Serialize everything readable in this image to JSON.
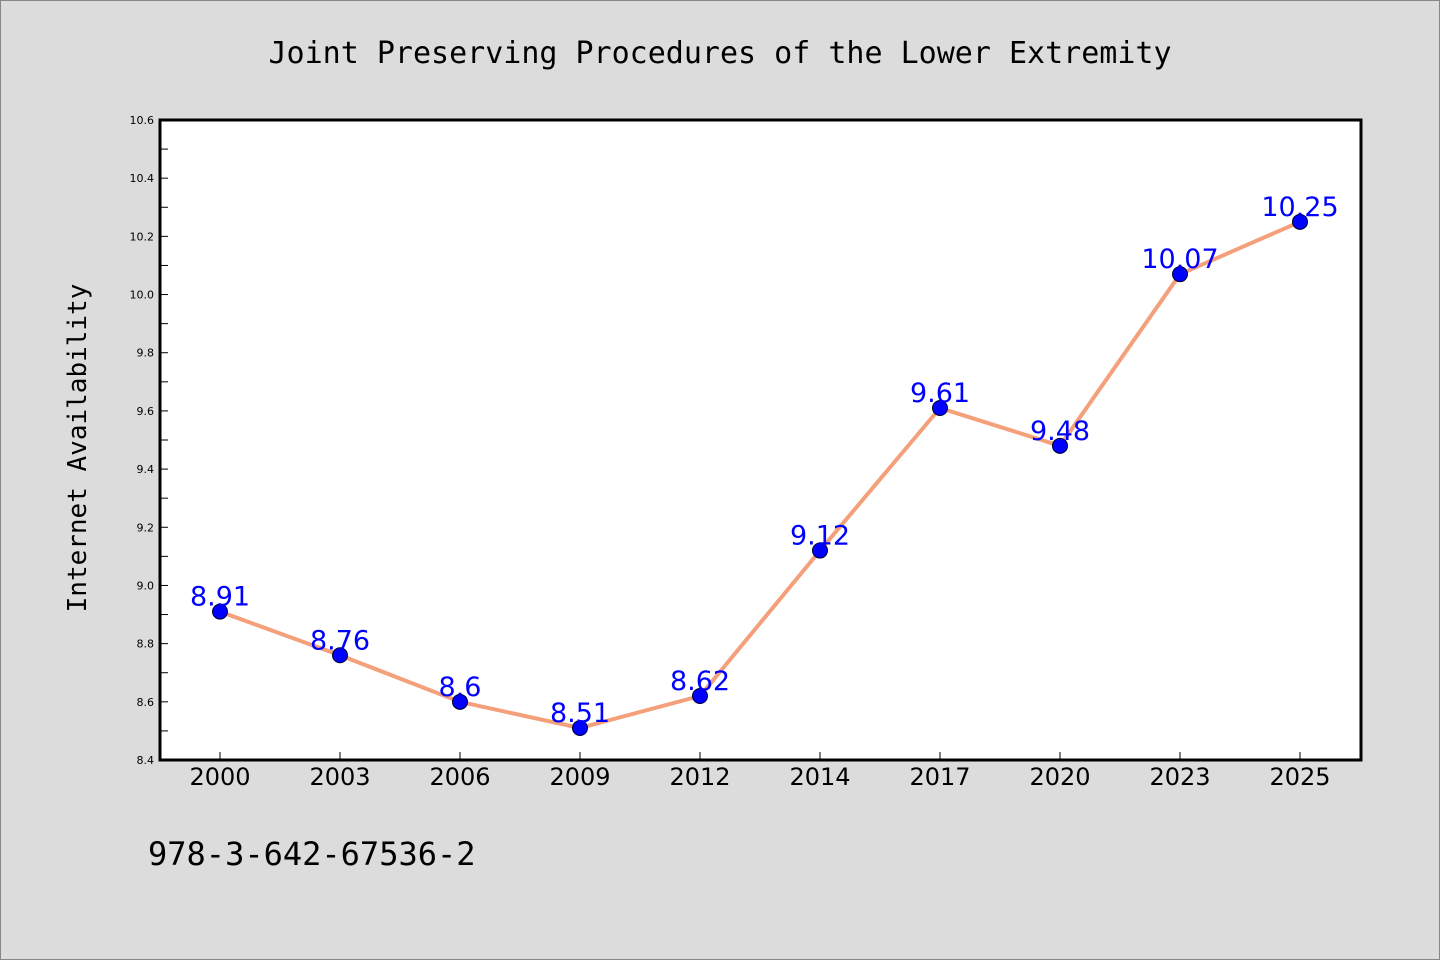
{
  "chart_data": {
    "type": "line",
    "title": "Joint Preserving Procedures of the Lower Extremity",
    "xlabel": "",
    "ylabel": "Internet Availability",
    "categories": [
      "2000",
      "2003",
      "2006",
      "2009",
      "2012",
      "2014",
      "2017",
      "2020",
      "2023",
      "2025"
    ],
    "series": [
      {
        "values": [
          8.91,
          8.76,
          8.6,
          8.51,
          8.62,
          9.12,
          9.61,
          9.48,
          10.07,
          10.25
        ],
        "data_labels": [
          "8.91",
          "8.76",
          "8.6",
          "8.51",
          "8.62",
          "9.12",
          "9.61",
          "9.48",
          "10.07",
          "10.25"
        ]
      }
    ],
    "ylim": [
      8.4,
      10.6
    ],
    "yticks": [
      "8.4",
      "8.6",
      "8.8",
      "9.0",
      "9.2",
      "9.4",
      "9.6",
      "9.8",
      "10.0",
      "10.2",
      "10.4",
      "10.6"
    ],
    "grid": false,
    "line_color": "#f4a07a",
    "marker_color": "#0000ff",
    "label_color": "#0000ff"
  },
  "footer_text": "978-3-642-67536-2"
}
